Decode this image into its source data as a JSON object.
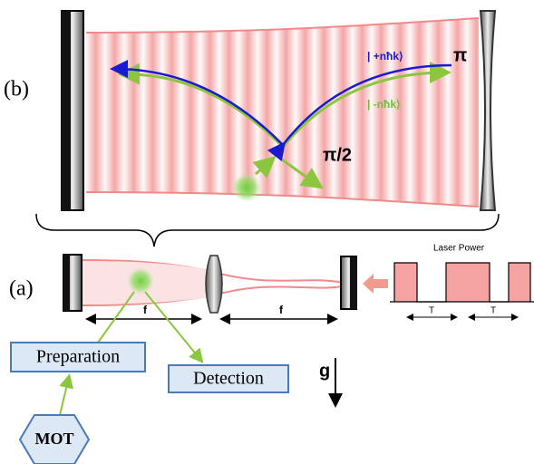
{
  "panel_b": {
    "label": "(b)",
    "ket_plus": "| +nħk⟩",
    "ket_minus": "| -nħk⟩",
    "pi": "π",
    "pi_half": "π/2"
  },
  "panel_a": {
    "label": "(a)",
    "focal_left": "f",
    "focal_right": "f",
    "laser_power": "Laser Power",
    "period_1": "T",
    "period_2": "T"
  },
  "boxes": {
    "preparation": "Preparation",
    "detection": "Detection",
    "mot": "MOT"
  },
  "gravity": "g"
}
